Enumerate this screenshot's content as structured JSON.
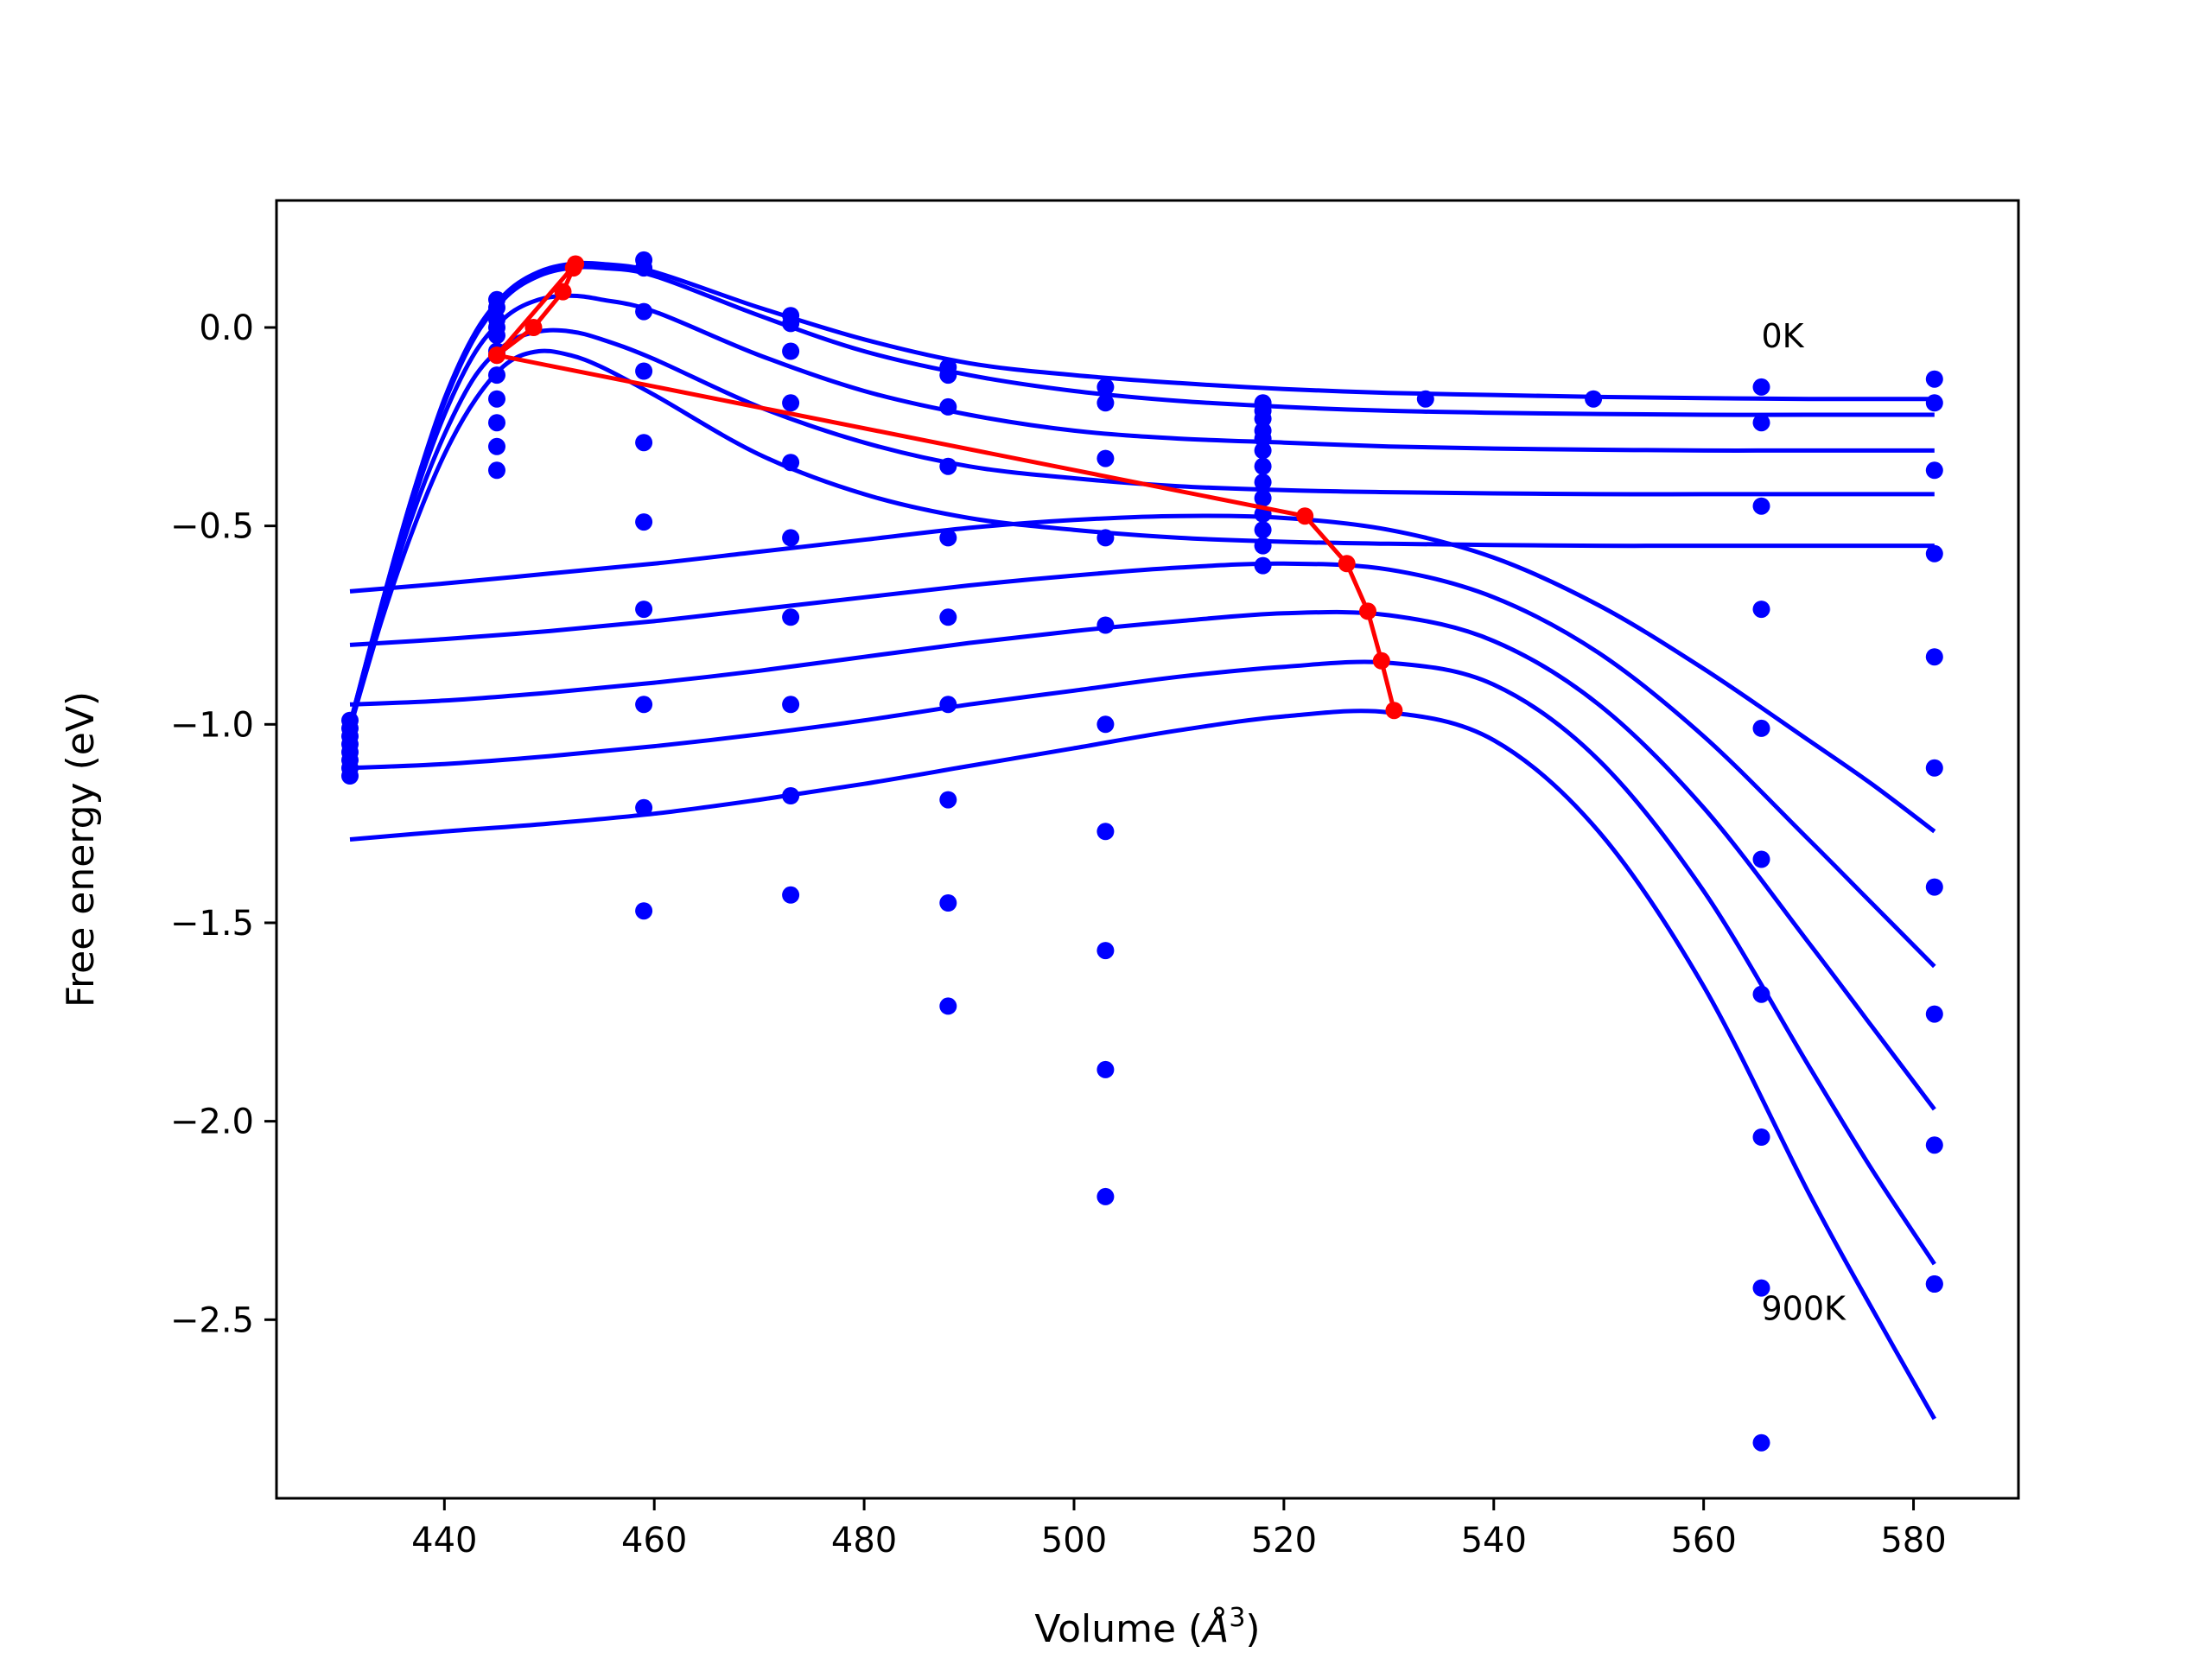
{
  "chart_data": {
    "type": "line",
    "xlabel": "Volume (",
    "xlabel_unit": "Å",
    "xlabel_sup": "3",
    "xlabel_close": ")",
    "ylabel": "Free energy (eV)",
    "xlim": [
      424,
      590
    ],
    "ylim": [
      -2.95,
      0.32
    ],
    "x_ticks": [
      440,
      460,
      480,
      500,
      520,
      540,
      560,
      580
    ],
    "y_ticks": [
      0.0,
      -0.5,
      -1.0,
      -1.5,
      -2.0,
      -2.5
    ],
    "y_tick_labels": [
      "0.0",
      "−0.5",
      "−1.0",
      "−1.5",
      "−2.0",
      "−2.5"
    ],
    "grid": false,
    "legend": "none",
    "colors": {
      "curves": "#0000ff",
      "points": "#0000ff",
      "minima": "#ff0000",
      "axis": "#000000"
    },
    "annotations": [
      {
        "text": "0K",
        "x": 565.5,
        "y": -0.05
      },
      {
        "text": "900K",
        "x": 565.5,
        "y": -2.5
      }
    ],
    "series": [
      {
        "x": [
          431,
          434,
          437,
          440,
          443,
          446,
          449,
          452,
          455,
          460,
          470,
          480,
          490,
          500,
          510,
          520,
          530,
          540,
          550,
          560,
          570,
          582
        ],
        "y": [
          -1.0,
          -0.7,
          -0.42,
          -0.18,
          -0.01,
          0.09,
          0.14,
          0.16,
          0.16,
          0.14,
          0.05,
          -0.03,
          -0.09,
          -0.12,
          -0.14,
          -0.155,
          -0.165,
          -0.17,
          -0.175,
          -0.178,
          -0.18,
          -0.18
        ]
      },
      {
        "x": [
          431,
          434,
          437,
          440,
          443,
          446,
          449,
          452,
          455,
          460,
          470,
          480,
          490,
          500,
          510,
          520,
          530,
          540,
          550,
          560,
          570,
          582
        ],
        "y": [
          -1.0,
          -0.7,
          -0.42,
          -0.19,
          -0.02,
          0.08,
          0.13,
          0.15,
          0.15,
          0.13,
          0.03,
          -0.06,
          -0.12,
          -0.16,
          -0.185,
          -0.2,
          -0.21,
          -0.215,
          -0.218,
          -0.22,
          -0.22,
          -0.22
        ]
      },
      {
        "x": [
          431,
          434,
          437,
          440,
          443,
          446,
          449,
          452,
          455,
          460,
          470,
          480,
          490,
          500,
          510,
          520,
          530,
          540,
          550,
          560,
          570,
          582
        ],
        "y": [
          -1.0,
          -0.71,
          -0.44,
          -0.22,
          -0.06,
          0.03,
          0.07,
          0.08,
          0.07,
          0.04,
          -0.07,
          -0.16,
          -0.22,
          -0.26,
          -0.28,
          -0.29,
          -0.3,
          -0.305,
          -0.308,
          -0.31,
          -0.31,
          -0.31
        ]
      },
      {
        "x": [
          431,
          434,
          437,
          440,
          443,
          446,
          449,
          452,
          455,
          460,
          470,
          480,
          490,
          500,
          510,
          520,
          530,
          540,
          550,
          560,
          570,
          582
        ],
        "y": [
          -1.01,
          -0.72,
          -0.47,
          -0.27,
          -0.12,
          -0.04,
          -0.01,
          -0.01,
          -0.03,
          -0.08,
          -0.2,
          -0.29,
          -0.35,
          -0.38,
          -0.4,
          -0.41,
          -0.415,
          -0.418,
          -0.42,
          -0.42,
          -0.42,
          -0.42
        ]
      },
      {
        "x": [
          431,
          434,
          437,
          440,
          443,
          446,
          449,
          452,
          455,
          460,
          470,
          480,
          490,
          500,
          510,
          520,
          530,
          540,
          550,
          560,
          570,
          582
        ],
        "y": [
          -1.01,
          -0.74,
          -0.51,
          -0.32,
          -0.18,
          -0.09,
          -0.06,
          -0.07,
          -0.1,
          -0.17,
          -0.32,
          -0.42,
          -0.48,
          -0.51,
          -0.53,
          -0.54,
          -0.545,
          -0.548,
          -0.55,
          -0.55,
          -0.55,
          -0.55
        ]
      },
      {
        "x": [
          431,
          440,
          450,
          460,
          470,
          480,
          490,
          500,
          510,
          520,
          530,
          540,
          550,
          560,
          570,
          576,
          582
        ],
        "y": [
          -0.665,
          -0.645,
          -0.62,
          -0.595,
          -0.565,
          -0.535,
          -0.505,
          -0.485,
          -0.475,
          -0.48,
          -0.51,
          -0.58,
          -0.7,
          -0.86,
          -1.04,
          -1.15,
          -1.27
        ]
      },
      {
        "x": [
          431,
          440,
          450,
          460,
          470,
          480,
          490,
          500,
          510,
          520,
          530,
          540,
          550,
          560,
          570,
          576,
          582
        ],
        "y": [
          -0.8,
          -0.785,
          -0.765,
          -0.74,
          -0.71,
          -0.68,
          -0.65,
          -0.625,
          -0.605,
          -0.595,
          -0.61,
          -0.68,
          -0.82,
          -1.03,
          -1.29,
          -1.45,
          -1.61
        ]
      },
      {
        "x": [
          431,
          440,
          450,
          460,
          470,
          480,
          490,
          500,
          510,
          520,
          530,
          540,
          550,
          560,
          570,
          576,
          582
        ],
        "y": [
          -0.95,
          -0.94,
          -0.92,
          -0.895,
          -0.865,
          -0.83,
          -0.795,
          -0.765,
          -0.74,
          -0.72,
          -0.725,
          -0.79,
          -0.95,
          -1.21,
          -1.55,
          -1.76,
          -1.97
        ]
      },
      {
        "x": [
          431,
          440,
          450,
          460,
          470,
          480,
          490,
          500,
          510,
          520,
          530,
          540,
          550,
          560,
          570,
          576,
          582
        ],
        "y": [
          -1.11,
          -1.1,
          -1.08,
          -1.055,
          -1.025,
          -0.99,
          -0.95,
          -0.915,
          -0.88,
          -0.855,
          -0.845,
          -0.9,
          -1.09,
          -1.42,
          -1.86,
          -2.12,
          -2.36
        ]
      },
      {
        "x": [
          431,
          440,
          450,
          460,
          470,
          480,
          490,
          500,
          510,
          520,
          530,
          540,
          550,
          560,
          570,
          576,
          582
        ],
        "y": [
          -1.29,
          -1.27,
          -1.25,
          -1.225,
          -1.19,
          -1.15,
          -1.105,
          -1.06,
          -1.015,
          -0.98,
          -0.97,
          -1.04,
          -1.27,
          -1.66,
          -2.18,
          -2.47,
          -2.75
        ]
      }
    ],
    "minima_path": {
      "x": [
        445,
        448.5,
        451.3,
        452.3,
        452.5,
        445,
        522,
        526,
        528,
        529.3,
        530.5
      ],
      "y": [
        -0.07,
        0.0,
        0.09,
        0.15,
        0.16,
        -0.07,
        -0.475,
        -0.595,
        -0.715,
        -0.84,
        -0.965
      ]
    },
    "scatter": {
      "x": [
        431,
        431,
        431,
        431,
        431,
        431,
        431,
        431,
        445,
        445,
        445,
        445,
        445,
        445,
        445,
        445,
        445,
        445,
        445,
        445,
        459,
        459,
        459,
        459,
        459,
        459,
        459,
        459,
        459,
        459,
        473,
        473,
        473,
        473,
        473,
        473,
        473,
        473,
        473,
        473,
        488,
        488,
        488,
        488,
        488,
        488,
        488,
        488,
        488,
        488,
        503,
        503,
        503,
        503,
        503,
        503,
        503,
        503,
        503,
        503,
        518,
        518,
        518,
        518,
        518,
        518,
        518,
        518,
        518,
        518,
        518,
        518,
        518,
        533.5,
        549.5,
        565.5,
        565.5,
        565.5,
        565.5,
        565.5,
        565.5,
        565.5,
        565.5,
        565.5,
        565.5,
        582,
        582,
        582,
        582,
        582,
        582,
        582,
        582,
        582,
        582,
        582
      ],
      "y": [
        -0.99,
        -1.01,
        -1.03,
        -1.05,
        -1.07,
        -1.09,
        -1.11,
        -1.13,
        0.07,
        0.05,
        0.02,
        -0.02,
        -0.07,
        -0.12,
        -0.18,
        -0.24,
        -0.3,
        -0.36,
        -0.06,
        0.0,
        0.17,
        0.15,
        0.04,
        -0.11,
        -0.29,
        -0.49,
        -0.71,
        -0.95,
        -1.21,
        -1.47,
        0.03,
        0.01,
        -0.06,
        -0.19,
        -0.34,
        -0.53,
        -0.73,
        -0.95,
        -1.18,
        -1.43,
        -0.1,
        -0.12,
        -0.2,
        -0.35,
        -0.53,
        -0.73,
        -0.95,
        -1.19,
        -1.45,
        -1.71,
        -0.15,
        -0.19,
        -0.33,
        -0.53,
        -0.75,
        -1.0,
        -1.27,
        -1.57,
        -1.87,
        -2.19,
        -0.19,
        -0.21,
        -0.23,
        -0.26,
        -0.28,
        -0.31,
        -0.35,
        -0.39,
        -0.43,
        -0.47,
        -0.51,
        -0.55,
        -0.6,
        -0.18,
        -0.18,
        -0.15,
        -0.24,
        -0.45,
        -0.71,
        -1.01,
        -1.34,
        -1.68,
        -2.04,
        -2.42,
        -2.81,
        -0.13,
        -0.19,
        -0.36,
        -0.57,
        -0.83,
        -1.11,
        -1.41,
        -1.73,
        -2.06,
        -2.41,
        -2.41
      ]
    }
  }
}
